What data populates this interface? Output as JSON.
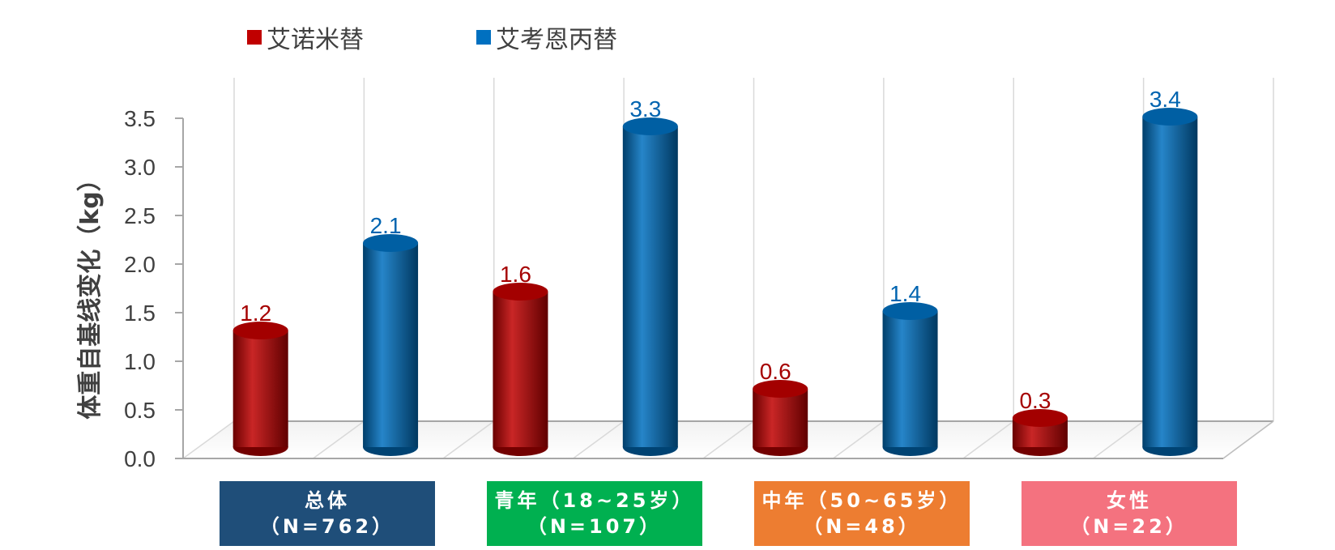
{
  "chart_data": {
    "type": "bar",
    "ylabel": "体重自基线变化（kg）",
    "ylim": [
      0,
      3.5
    ],
    "yticks": [
      "0.0",
      "0.5",
      "1.0",
      "1.5",
      "2.0",
      "2.5",
      "3.0",
      "3.5"
    ],
    "categories": [
      {
        "line1": "总体",
        "line2": "（N=762）"
      },
      {
        "line1": "青年（18~25岁）",
        "line2": "（N=107）"
      },
      {
        "line1": "中年（50~65岁）",
        "line2": "（N=48）"
      },
      {
        "line1": "女性",
        "line2": "（N=22）"
      }
    ],
    "category_colors": [
      "#1F4E79",
      "#00B050",
      "#ED7D31",
      "#F4727F"
    ],
    "series": [
      {
        "name": "艾诺米替",
        "color": "#C00000",
        "label_color": "#A50000",
        "values": [
          1.2,
          1.6,
          0.6,
          0.3
        ]
      },
      {
        "name": "艾考恩丙替",
        "color": "#0070C0",
        "label_color": "#0064B0",
        "values": [
          2.1,
          3.3,
          1.4,
          3.4
        ]
      }
    ],
    "grid": true,
    "legend_position": "top"
  }
}
